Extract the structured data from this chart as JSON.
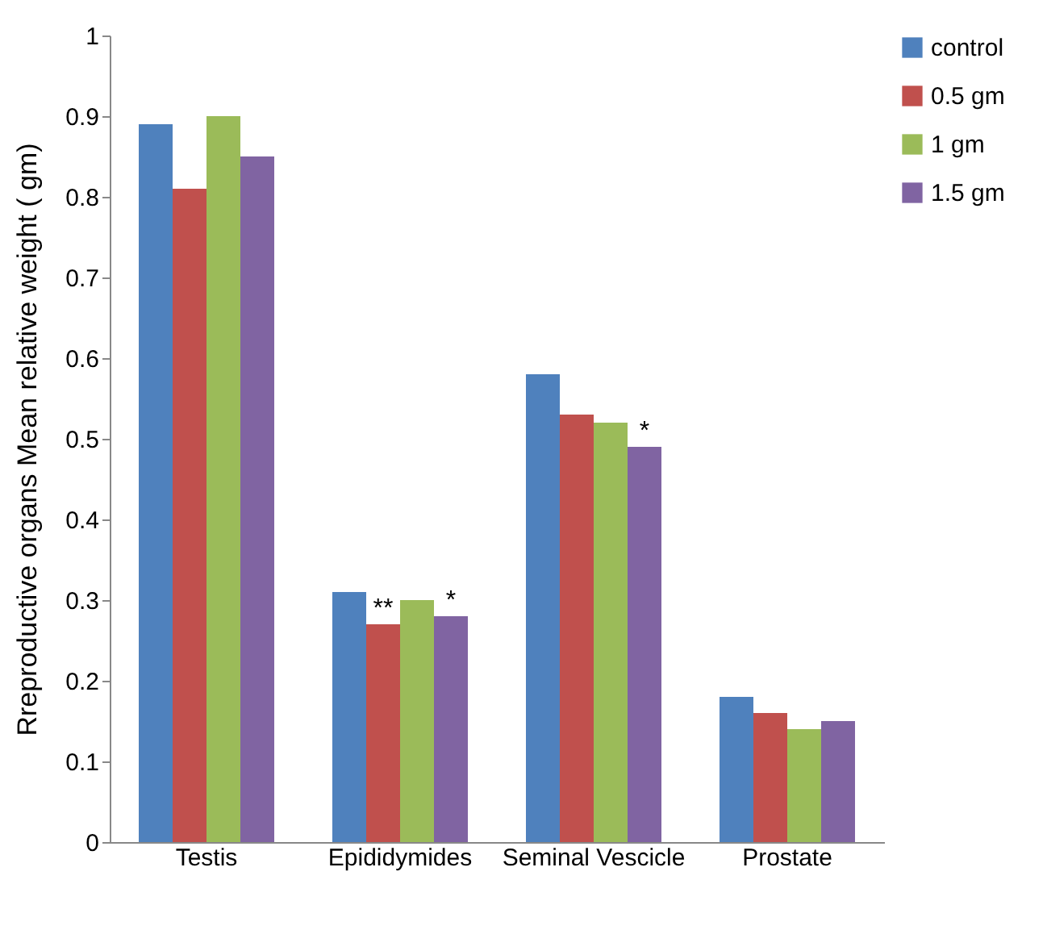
{
  "chart_data": {
    "type": "bar",
    "ylabel": "Rreproductive organs  Mean relative weight ( gm)",
    "categories": [
      "Testis",
      "Epididymides",
      "Seminal Vescicle",
      "Prostate"
    ],
    "series": [
      {
        "name": "control",
        "color": "#4f81bd",
        "values": [
          0.89,
          0.31,
          0.58,
          0.18
        ]
      },
      {
        "name": "0.5 gm",
        "color": "#c0504d",
        "values": [
          0.81,
          0.27,
          0.53,
          0.16
        ]
      },
      {
        "name": "1 gm",
        "color": "#9bbb59",
        "values": [
          0.9,
          0.3,
          0.52,
          0.14
        ]
      },
      {
        "name": "1.5 gm",
        "color": "#8064a2",
        "values": [
          0.85,
          0.28,
          0.49,
          0.15
        ]
      }
    ],
    "ylim": [
      0,
      1
    ],
    "yticks": [
      0,
      0.1,
      0.2,
      0.3,
      0.4,
      0.5,
      0.6,
      0.7,
      0.8,
      0.9,
      1
    ],
    "grid": false,
    "legend": "right",
    "annotations": [
      {
        "text": "**",
        "x": "Epididymides",
        "y": 0.27
      },
      {
        "text": "*",
        "x": "Epididymides",
        "y": 0.28
      },
      {
        "text": "*",
        "x": "Seminal Vescicle",
        "y": 0.49
      }
    ]
  }
}
